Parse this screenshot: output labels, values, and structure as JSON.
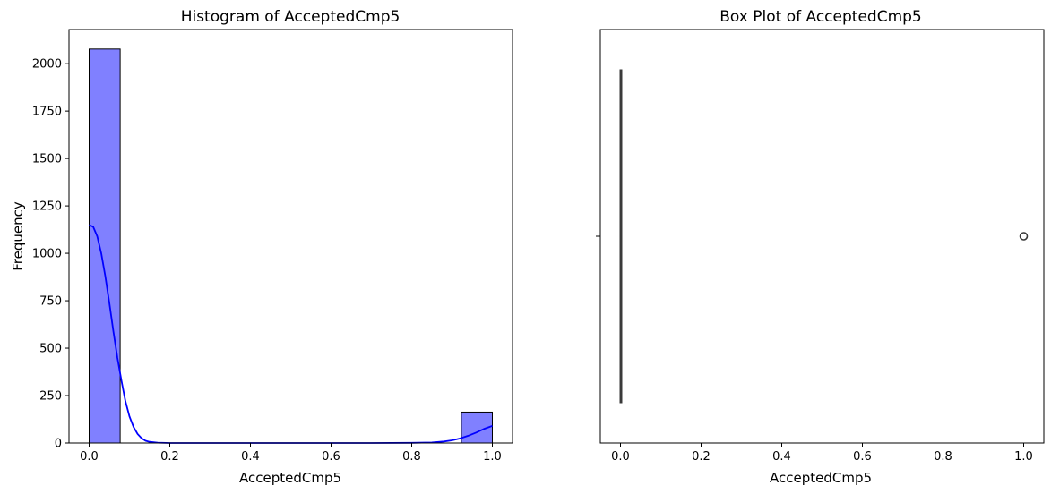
{
  "chart_data": [
    {
      "type": "histogram",
      "title": "Histogram of AcceptedCmp5",
      "xlabel": "AcceptedCmp5",
      "ylabel": "Frequency",
      "xlim": [
        -0.05,
        1.05
      ],
      "ylim": [
        0,
        2180
      ],
      "xticks": [
        "0.0",
        "0.2",
        "0.4",
        "0.6",
        "0.8",
        "1.0"
      ],
      "yticks": [
        "0",
        "250",
        "500",
        "750",
        "1000",
        "1250",
        "1500",
        "1750",
        "2000"
      ],
      "bins": [
        {
          "x0": 0.0,
          "x1": 0.0769,
          "count": 2077
        },
        {
          "x0": 0.9231,
          "x1": 1.0,
          "count": 163
        }
      ],
      "bar_color": "#8080ff",
      "bar_edge": "#000000",
      "kde": {
        "color": "#0000ff",
        "points": [
          [
            0.0,
            1150
          ],
          [
            0.01,
            1140
          ],
          [
            0.02,
            1090
          ],
          [
            0.03,
            1000
          ],
          [
            0.04,
            880
          ],
          [
            0.05,
            740
          ],
          [
            0.06,
            590
          ],
          [
            0.07,
            450
          ],
          [
            0.08,
            330
          ],
          [
            0.09,
            220
          ],
          [
            0.1,
            140
          ],
          [
            0.11,
            85
          ],
          [
            0.12,
            48
          ],
          [
            0.13,
            25
          ],
          [
            0.14,
            12
          ],
          [
            0.15,
            6
          ],
          [
            0.17,
            2
          ],
          [
            0.2,
            0
          ],
          [
            0.3,
            0
          ],
          [
            0.4,
            0
          ],
          [
            0.5,
            0
          ],
          [
            0.6,
            0
          ],
          [
            0.7,
            0
          ],
          [
            0.8,
            1
          ],
          [
            0.85,
            3
          ],
          [
            0.88,
            8
          ],
          [
            0.9,
            14
          ],
          [
            0.92,
            24
          ],
          [
            0.94,
            38
          ],
          [
            0.96,
            55
          ],
          [
            0.98,
            75
          ],
          [
            1.0,
            90
          ]
        ]
      }
    },
    {
      "type": "box",
      "title": "Box Plot of AcceptedCmp5",
      "xlabel": "AcceptedCmp5",
      "xlim": [
        -0.05,
        1.05
      ],
      "xticks": [
        "0.0",
        "0.2",
        "0.4",
        "0.6",
        "0.8",
        "1.0"
      ],
      "box": {
        "min": 0,
        "q1": 0,
        "median": 0,
        "q3": 0,
        "max": 0
      },
      "outliers": [
        1.0
      ],
      "box_color": "#3a3a3a"
    }
  ]
}
